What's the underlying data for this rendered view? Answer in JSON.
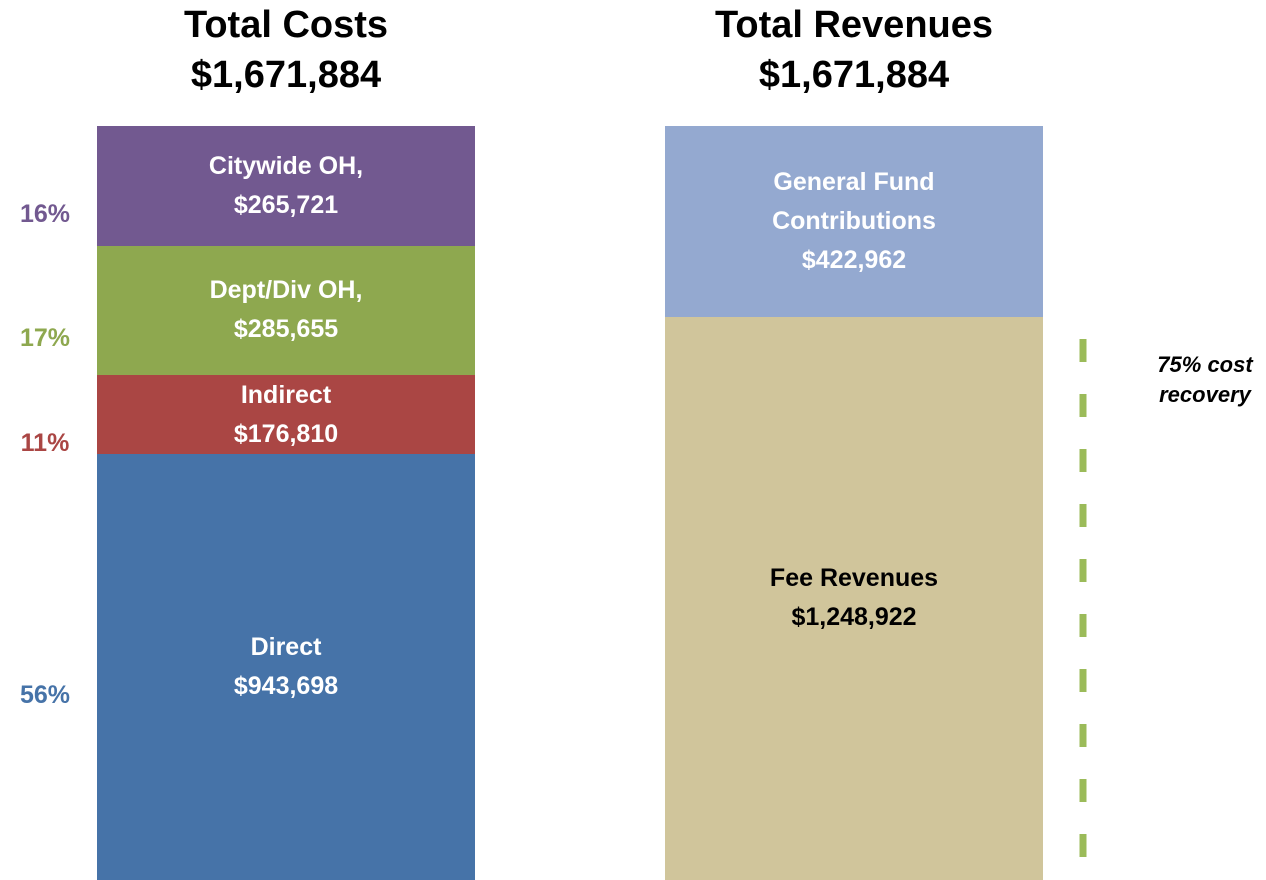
{
  "chart_data": [
    {
      "type": "stacked_bar",
      "title": "Total Costs",
      "subtitle": "$1,671,884",
      "series": [
        {
          "name": "Direct",
          "color": "#4673a8",
          "values": [
            943698
          ],
          "value_labels": [
            "$943,698"
          ],
          "share": 56,
          "share_label": "56%",
          "label_color": "#ffffff"
        },
        {
          "name": "Indirect",
          "color": "#aa4644",
          "values": [
            176810
          ],
          "value_labels": [
            "$176,810"
          ],
          "share": 11,
          "share_label": "11%",
          "label_color": "#ffffff"
        },
        {
          "name": "Dept/Div OH,",
          "color": "#8ea84f",
          "values": [
            285655
          ],
          "value_labels": [
            "$285,655"
          ],
          "share": 17,
          "share_label": "17%",
          "label_color": "#ffffff"
        },
        {
          "name": "Citywide OH,",
          "color": "#725990",
          "values": [
            265721
          ],
          "value_labels": [
            "$265,721"
          ],
          "share": 16,
          "share_label": "16%",
          "label_color": "#ffffff"
        }
      ]
    },
    {
      "type": "stacked_bar",
      "title": "Total Revenues",
      "subtitle": "$1,671,884",
      "series": [
        {
          "name": "Fee Revenues",
          "color": "#d0c59b",
          "values": [
            1248922
          ],
          "value_labels": [
            "$1,248,922"
          ],
          "label_color": "#000000"
        },
        {
          "name": "General Fund Contributions",
          "color": "#94a9d0",
          "values": [
            422962
          ],
          "value_labels": [
            "$422,962"
          ],
          "label_color": "#ffffff"
        }
      ],
      "annotation": "75% cost recovery",
      "annotation_color": "#9bbb59"
    }
  ]
}
